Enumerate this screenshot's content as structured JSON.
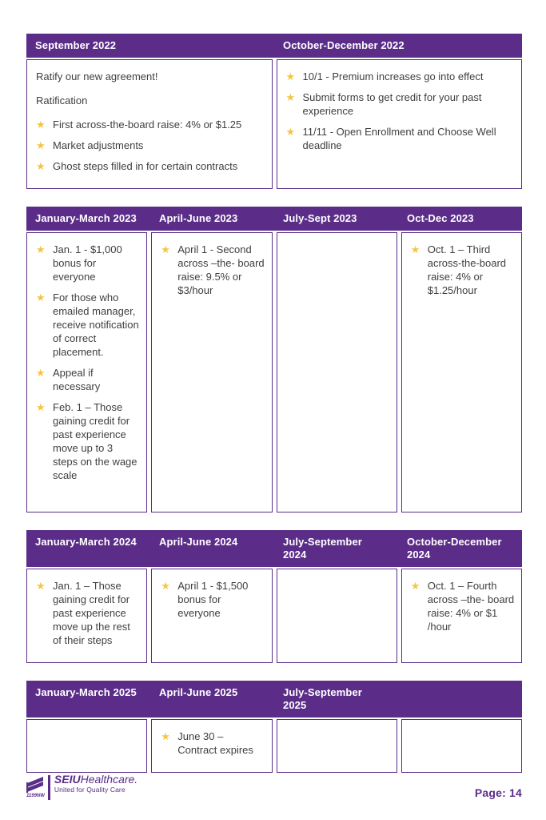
{
  "colors": {
    "purple": "#5b2d88",
    "star_gold": "#f6c53f",
    "body_text": "#3f3f41"
  },
  "tables": [
    {
      "name": "2022",
      "columns": [
        {
          "header": "September 2022",
          "paragraphs": [
            "Ratify our new agreement!",
            "Ratification"
          ],
          "bullets": [
            "First across-the-board raise: 4% or $1.25",
            "Market adjustments",
            "Ghost steps filled in for certain contracts"
          ]
        },
        {
          "header": "October-December 2022",
          "paragraphs": [],
          "bullets": [
            "10/1 - Premium increases go into effect",
            "Submit forms to get credit for your past experience",
            "11/11 - Open Enrollment and Choose Well deadline"
          ]
        }
      ]
    },
    {
      "name": "2023",
      "columns": [
        {
          "header": "January-March 2023",
          "paragraphs": [],
          "bullets": [
            "Jan. 1 - $1,000 bonus for everyone",
            "For those who emailed manager, receive notification of correct placement.",
            "Appeal if necessary",
            "Feb. 1 – Those gaining credit for past experience move up to 3 steps on the wage scale"
          ]
        },
        {
          "header": "April-June 2023",
          "paragraphs": [],
          "bullets": [
            "April 1 - Second across –the- board raise: 9.5% or $3/hour"
          ]
        },
        {
          "header": "July-Sept 2023",
          "paragraphs": [],
          "bullets": []
        },
        {
          "header": "Oct-Dec 2023",
          "paragraphs": [],
          "bullets": [
            "Oct. 1 – Third across-the-board raise: 4% or $1.25/hour"
          ]
        }
      ]
    },
    {
      "name": "2024",
      "columns": [
        {
          "header": "January-March 2024",
          "paragraphs": [],
          "bullets": [
            "Jan. 1 – Those gaining credit for past experience move up the rest of their steps"
          ]
        },
        {
          "header": "April-June 2024",
          "paragraphs": [],
          "bullets": [
            "April 1 - $1,500 bonus for everyone"
          ]
        },
        {
          "header": "July-September\n2024",
          "paragraphs": [],
          "bullets": []
        },
        {
          "header": "October-December\n2024",
          "paragraphs": [],
          "bullets": [
            "Oct. 1 – Fourth across –the- board raise: 4% or $1 /hour"
          ]
        }
      ]
    },
    {
      "name": "2025",
      "columns": [
        {
          "header": "January-March 2025",
          "paragraphs": [],
          "bullets": []
        },
        {
          "header": "April-June 2025",
          "paragraphs": [],
          "bullets": [
            "June 30 – Contract expires"
          ]
        },
        {
          "header": "July-September\n2025",
          "paragraphs": [],
          "bullets": []
        },
        {
          "header": "",
          "paragraphs": [],
          "bullets": []
        }
      ]
    }
  ],
  "footer": {
    "logo": {
      "org_bold": "SEIU",
      "org_rest": "Healthcare.",
      "tagline": "United for Quality Care",
      "local": "1199NW"
    },
    "page_label": "Page: 14"
  }
}
